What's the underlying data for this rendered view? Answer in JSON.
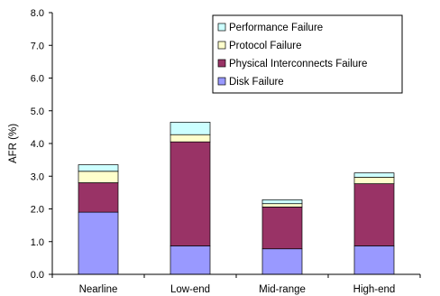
{
  "chart_data": {
    "type": "bar",
    "stacked": true,
    "title": "",
    "xlabel": "",
    "ylabel": "AFR (%)",
    "ylim": [
      0,
      8
    ],
    "ytick_step": 1,
    "ytick_labels": [
      "0.0",
      "1.0",
      "2.0",
      "3.0",
      "4.0",
      "5.0",
      "6.0",
      "7.0",
      "8.0"
    ],
    "grid": false,
    "legend_position": "top-right",
    "categories": [
      "Nearline",
      "Low-end",
      "Mid-range",
      "High-end"
    ],
    "series": [
      {
        "name": "Disk Failure",
        "color": "#9999ff",
        "values": [
          1.9,
          0.87,
          0.78,
          0.87
        ]
      },
      {
        "name": "Physical Interconnects Failure",
        "color": "#993366",
        "values": [
          0.9,
          3.18,
          1.28,
          1.9
        ]
      },
      {
        "name": "Protocol Failure",
        "color": "#ffffcc",
        "values": [
          0.35,
          0.22,
          0.1,
          0.2
        ]
      },
      {
        "name": "Performance Failure",
        "color": "#ccffff",
        "values": [
          0.2,
          0.38,
          0.12,
          0.13
        ]
      }
    ],
    "legend_order": [
      "Performance Failure",
      "Protocol Failure",
      "Physical Interconnects Failure",
      "Disk Failure"
    ]
  }
}
